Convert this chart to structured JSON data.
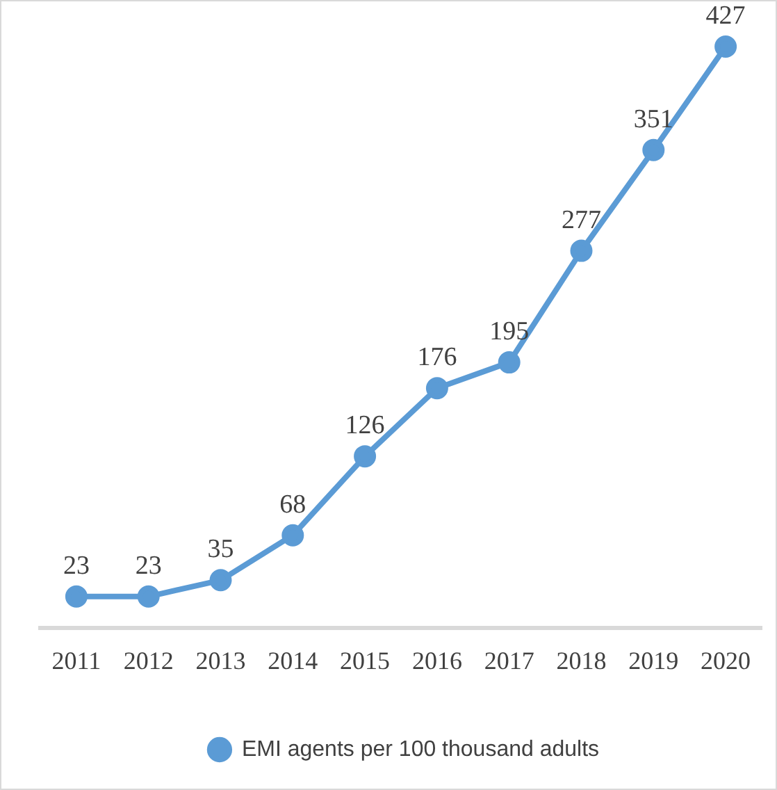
{
  "chart_data": {
    "type": "line",
    "categories": [
      "2011",
      "2012",
      "2013",
      "2014",
      "2015",
      "2016",
      "2017",
      "2018",
      "2019",
      "2020"
    ],
    "series": [
      {
        "name": "EMI agents per 100 thousand adults",
        "color": "#5b9bd5",
        "values": [
          23,
          23,
          35,
          68,
          126,
          176,
          195,
          277,
          351,
          427
        ]
      }
    ],
    "tick_labels": "x",
    "data_labels": true,
    "grid": false,
    "legend": "bottom",
    "marker": "circle",
    "line_style": "solid"
  }
}
